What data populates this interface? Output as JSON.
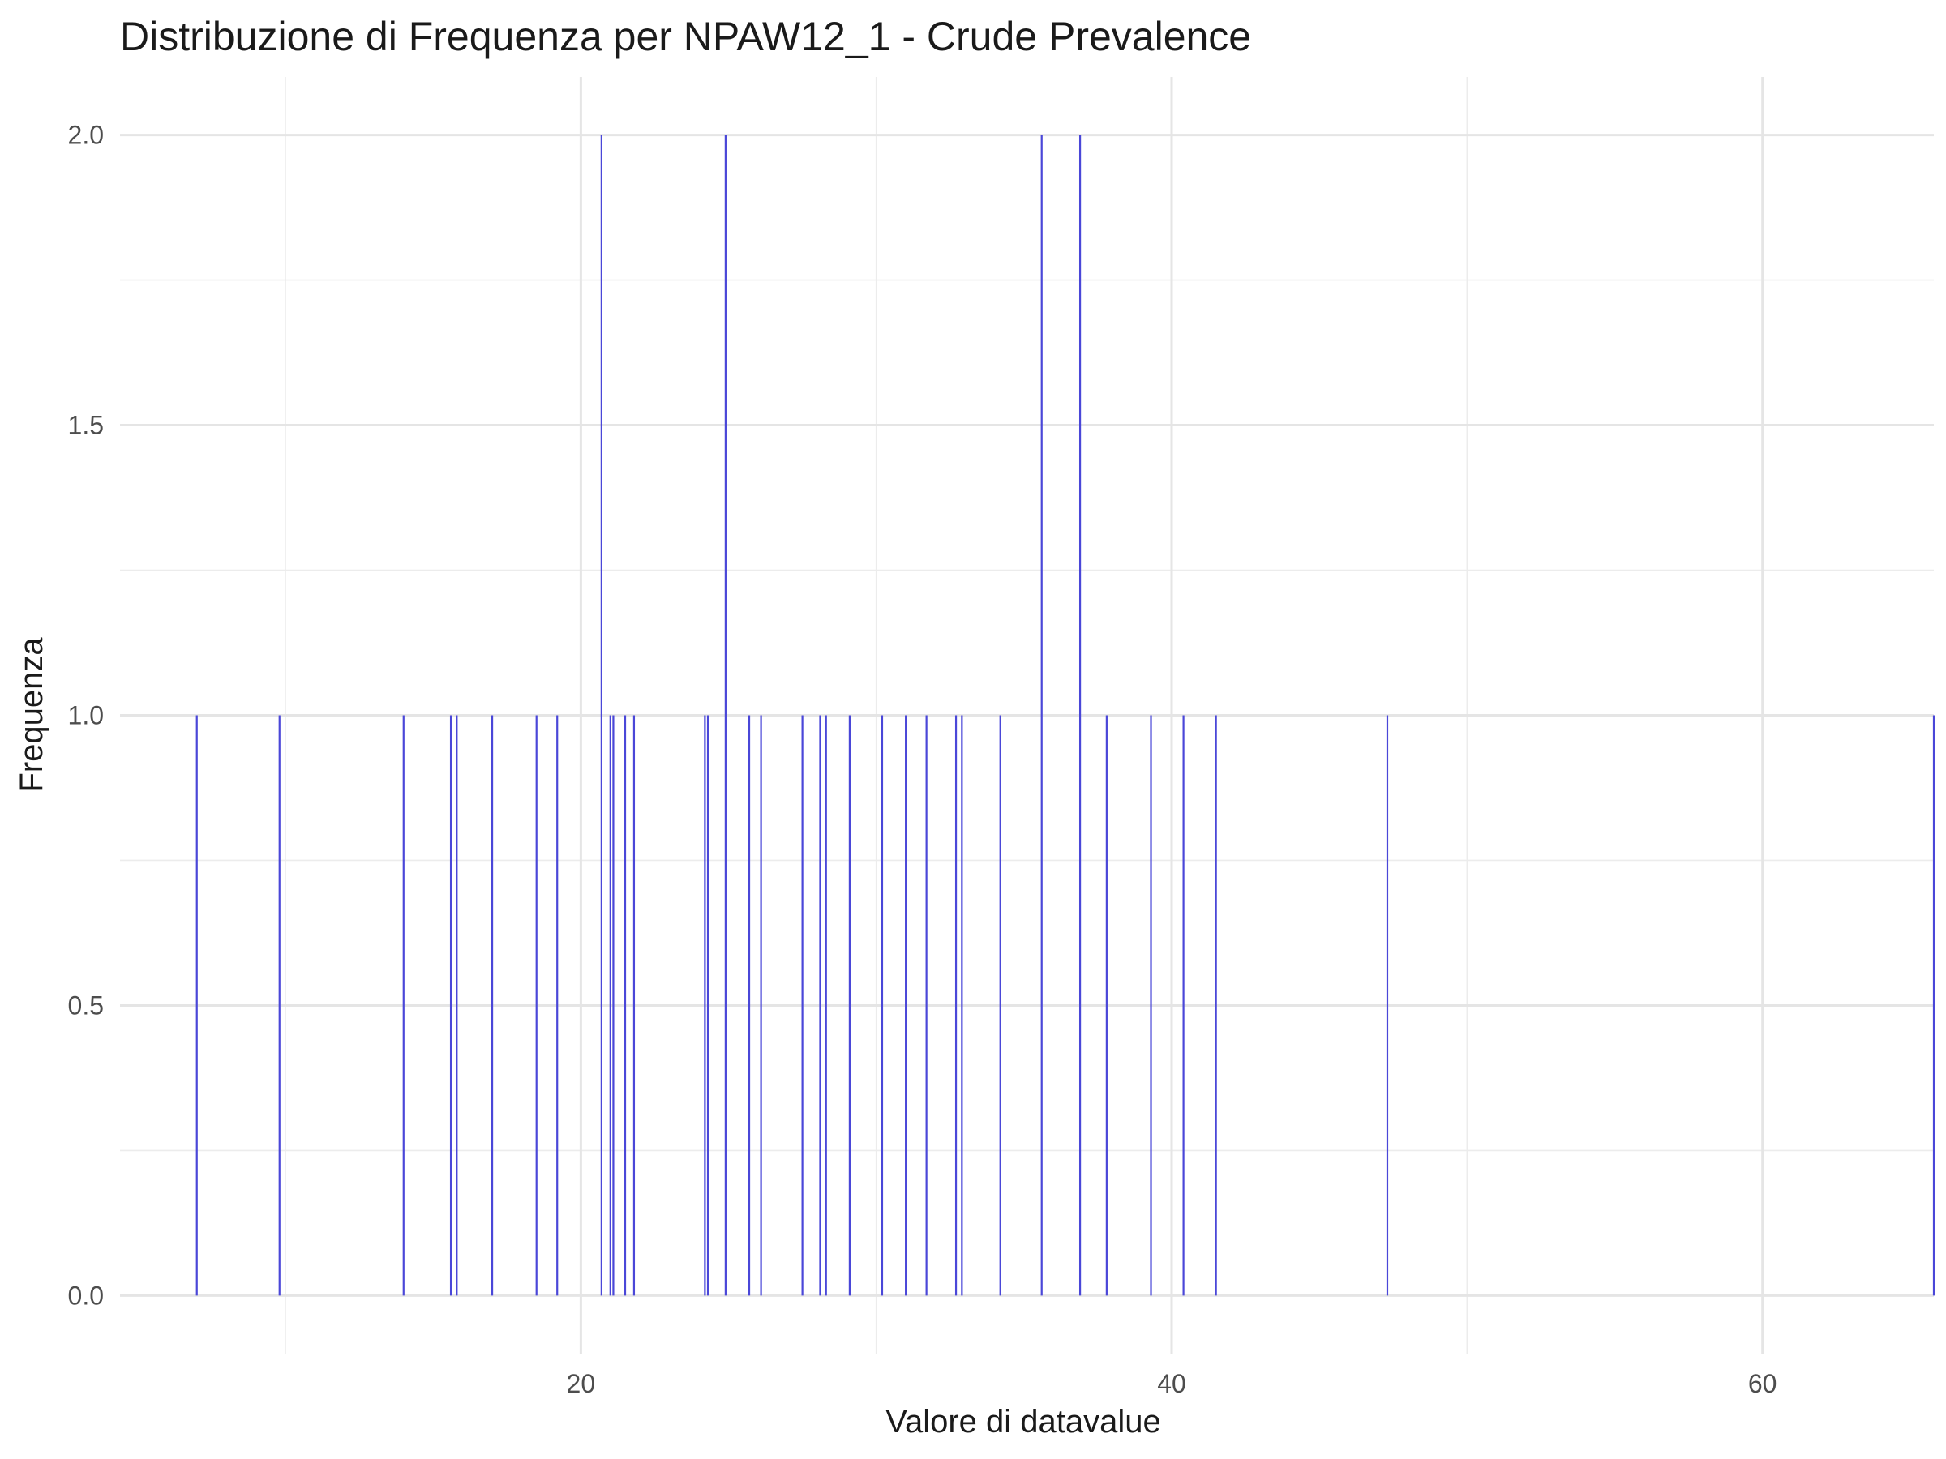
{
  "chart_data": {
    "type": "bar",
    "title": "Distribuzione di Frequenza per NPAW12_1 - Crude Prevalence",
    "xlabel": "Valore di datavalue",
    "ylabel": "Frequenza",
    "xlim": [
      4.4,
      65.8
    ],
    "ylim": [
      -0.1,
      2.1
    ],
    "x_ticks": [
      20,
      40,
      60
    ],
    "y_ticks": [
      "0.0",
      "0.5",
      "1.0",
      "1.5",
      "2.0"
    ],
    "y_tick_values": [
      0,
      0.5,
      1,
      1.5,
      2
    ],
    "x_minor_ticks": [
      10,
      30,
      50
    ],
    "y_minor_ticks": [
      0.25,
      0.75,
      1.25,
      1.75
    ],
    "grid": true,
    "bar_color": "#4a47d8",
    "x": [
      7.0,
      9.8,
      14.0,
      15.6,
      15.8,
      17.0,
      18.5,
      19.2,
      20.7,
      21.0,
      21.1,
      21.5,
      21.8,
      24.2,
      24.3,
      24.9,
      25.7,
      26.1,
      27.5,
      28.1,
      28.3,
      29.1,
      30.2,
      31.0,
      31.7,
      32.7,
      32.9,
      34.2,
      35.6,
      36.9,
      37.8,
      39.3,
      40.4,
      41.5,
      47.3,
      65.8
    ],
    "y": [
      1,
      1,
      1,
      1,
      1,
      1,
      1,
      1,
      2,
      1,
      1,
      1,
      1,
      1,
      1,
      2,
      1,
      1,
      1,
      1,
      1,
      1,
      1,
      1,
      1,
      1,
      1,
      1,
      2,
      2,
      1,
      1,
      1,
      1,
      1,
      1
    ]
  }
}
